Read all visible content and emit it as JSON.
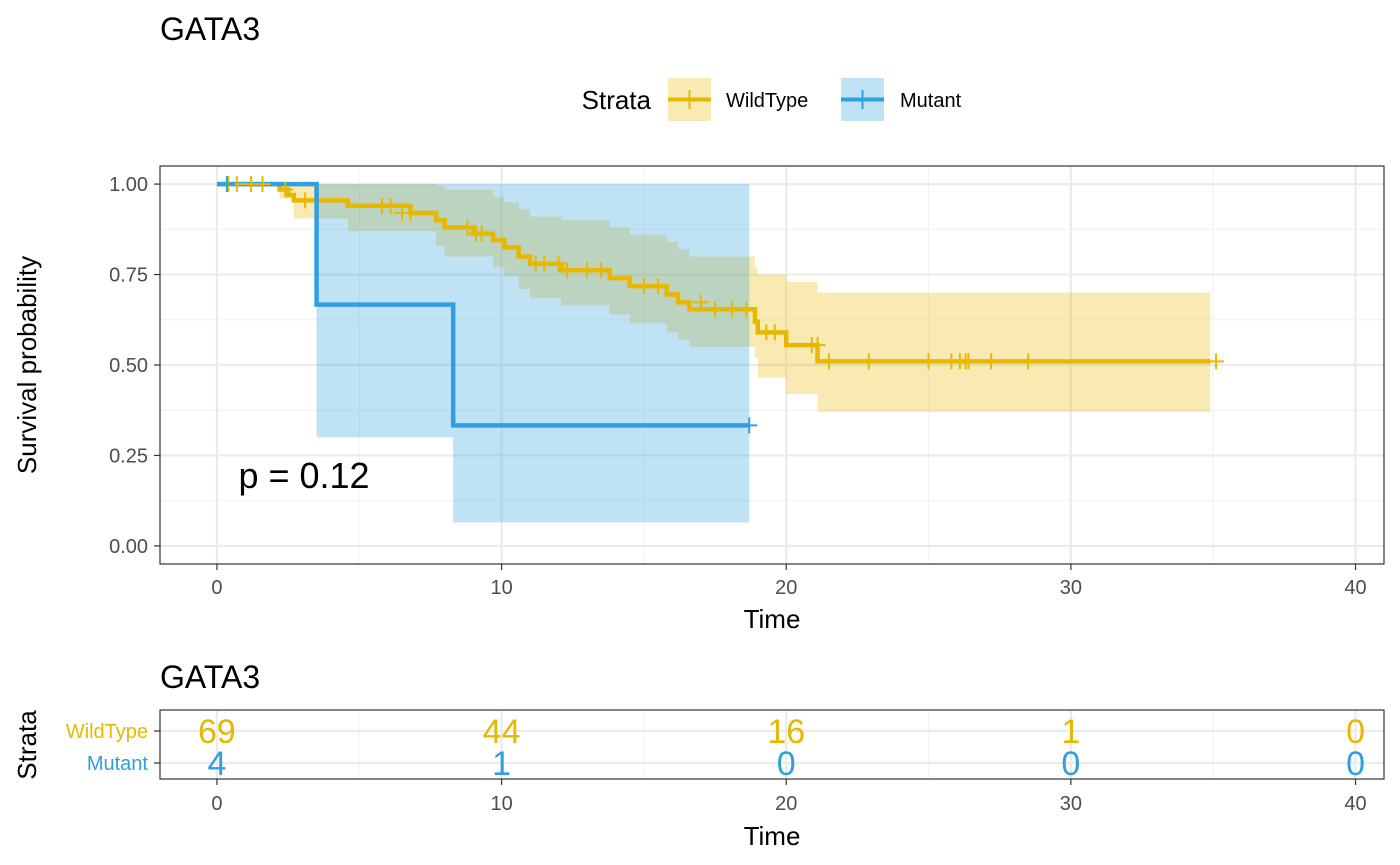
{
  "chart_data": [
    {
      "type": "line",
      "subtype": "kaplan-meier-survival",
      "title": "GATA3",
      "xlabel": "Time",
      "ylabel": "Survival probability",
      "xlim": [
        -2,
        41
      ],
      "ylim": [
        -0.05,
        1.05
      ],
      "x_ticks": [
        0,
        10,
        20,
        30,
        40
      ],
      "y_ticks": [
        0.0,
        0.25,
        0.5,
        0.75,
        1.0
      ],
      "y_tick_labels": [
        "0.00",
        "0.25",
        "0.50",
        "0.75",
        "1.00"
      ],
      "grid": true,
      "legend": {
        "title": "Strata",
        "position": "top"
      },
      "annotation": "p = 0.12",
      "series": [
        {
          "name": "WildType",
          "color": "#E7B800",
          "steps": [
            [
              0,
              1.0
            ],
            [
              2.2,
              0.985
            ],
            [
              2.5,
              0.97
            ],
            [
              2.7,
              0.955
            ],
            [
              4.6,
              0.94
            ],
            [
              6.8,
              0.92
            ],
            [
              7.7,
              0.9
            ],
            [
              8.0,
              0.88
            ],
            [
              9.0,
              0.863
            ],
            [
              9.7,
              0.845
            ],
            [
              10.1,
              0.825
            ],
            [
              10.6,
              0.8
            ],
            [
              11.0,
              0.78
            ],
            [
              12.1,
              0.762
            ],
            [
              13.8,
              0.74
            ],
            [
              14.5,
              0.718
            ],
            [
              15.8,
              0.695
            ],
            [
              16.2,
              0.673
            ],
            [
              16.6,
              0.654
            ],
            [
              18.9,
              0.62
            ],
            [
              19.0,
              0.59
            ],
            [
              20.0,
              0.555
            ],
            [
              21.1,
              0.51
            ],
            [
              34.9,
              0.51
            ]
          ],
          "ci_steps": [
            [
              0,
              1.0,
              1.0
            ],
            [
              2.2,
              1.0,
              0.96
            ],
            [
              2.7,
              1.0,
              0.905
            ],
            [
              4.6,
              1.0,
              0.87
            ],
            [
              7.7,
              0.995,
              0.83
            ],
            [
              8.0,
              0.985,
              0.8
            ],
            [
              9.7,
              0.965,
              0.77
            ],
            [
              10.1,
              0.95,
              0.745
            ],
            [
              10.6,
              0.93,
              0.71
            ],
            [
              11.0,
              0.91,
              0.685
            ],
            [
              12.1,
              0.9,
              0.665
            ],
            [
              13.8,
              0.88,
              0.64
            ],
            [
              14.5,
              0.86,
              0.615
            ],
            [
              15.8,
              0.84,
              0.59
            ],
            [
              16.2,
              0.82,
              0.57
            ],
            [
              16.6,
              0.8,
              0.55
            ],
            [
              18.9,
              0.77,
              0.52
            ],
            [
              19.0,
              0.75,
              0.465
            ],
            [
              20.0,
              0.73,
              0.42
            ],
            [
              21.1,
              0.7,
              0.37
            ],
            [
              34.9,
              0.7,
              0.37
            ]
          ],
          "censored": [
            [
              0.4,
              1.0
            ],
            [
              0.7,
              1.0
            ],
            [
              1.2,
              1.0
            ],
            [
              1.6,
              1.0
            ],
            [
              2.4,
              0.985
            ],
            [
              3.1,
              0.955
            ],
            [
              5.8,
              0.94
            ],
            [
              6.1,
              0.94
            ],
            [
              6.5,
              0.92
            ],
            [
              6.8,
              0.92
            ],
            [
              8.8,
              0.88
            ],
            [
              9.1,
              0.863
            ],
            [
              9.3,
              0.863
            ],
            [
              11.2,
              0.78
            ],
            [
              11.5,
              0.78
            ],
            [
              12.0,
              0.78
            ],
            [
              12.3,
              0.762
            ],
            [
              13.0,
              0.762
            ],
            [
              13.5,
              0.762
            ],
            [
              15.0,
              0.718
            ],
            [
              15.5,
              0.718
            ],
            [
              17.0,
              0.673
            ],
            [
              17.5,
              0.654
            ],
            [
              18.1,
              0.654
            ],
            [
              18.6,
              0.654
            ],
            [
              19.3,
              0.59
            ],
            [
              19.6,
              0.59
            ],
            [
              20.9,
              0.555
            ],
            [
              21.1,
              0.555
            ],
            [
              21.5,
              0.51
            ],
            [
              22.9,
              0.51
            ],
            [
              25.0,
              0.51
            ],
            [
              25.8,
              0.51
            ],
            [
              26.1,
              0.51
            ],
            [
              26.3,
              0.51
            ],
            [
              26.4,
              0.51
            ],
            [
              27.2,
              0.51
            ],
            [
              28.5,
              0.51
            ],
            [
              35.1,
              0.51
            ]
          ]
        },
        {
          "name": "Mutant",
          "color": "#2E9FDF",
          "steps": [
            [
              0,
              1.0
            ],
            [
              3.5,
              0.667
            ],
            [
              8.3,
              0.333
            ],
            [
              18.7,
              0.333
            ]
          ],
          "ci_steps": [
            [
              0,
              1.0,
              1.0
            ],
            [
              3.5,
              1.0,
              0.3
            ],
            [
              8.3,
              1.0,
              0.065
            ],
            [
              18.7,
              1.0,
              0.065
            ]
          ],
          "censored": [
            [
              0.35,
              1.0
            ],
            [
              18.7,
              0.333
            ]
          ]
        }
      ]
    },
    {
      "type": "table",
      "title": "GATA3",
      "xlabel": "Time",
      "ylabel": "Strata",
      "x_ticks": [
        0,
        10,
        20,
        30,
        40
      ],
      "rows": [
        {
          "name": "WildType",
          "color": "#E7B800",
          "values": [
            "69",
            "44",
            "16",
            "1",
            "0"
          ]
        },
        {
          "name": "Mutant",
          "color": "#2E9FDF",
          "values": [
            "4",
            "1",
            "0",
            "0",
            "0"
          ]
        }
      ]
    }
  ]
}
